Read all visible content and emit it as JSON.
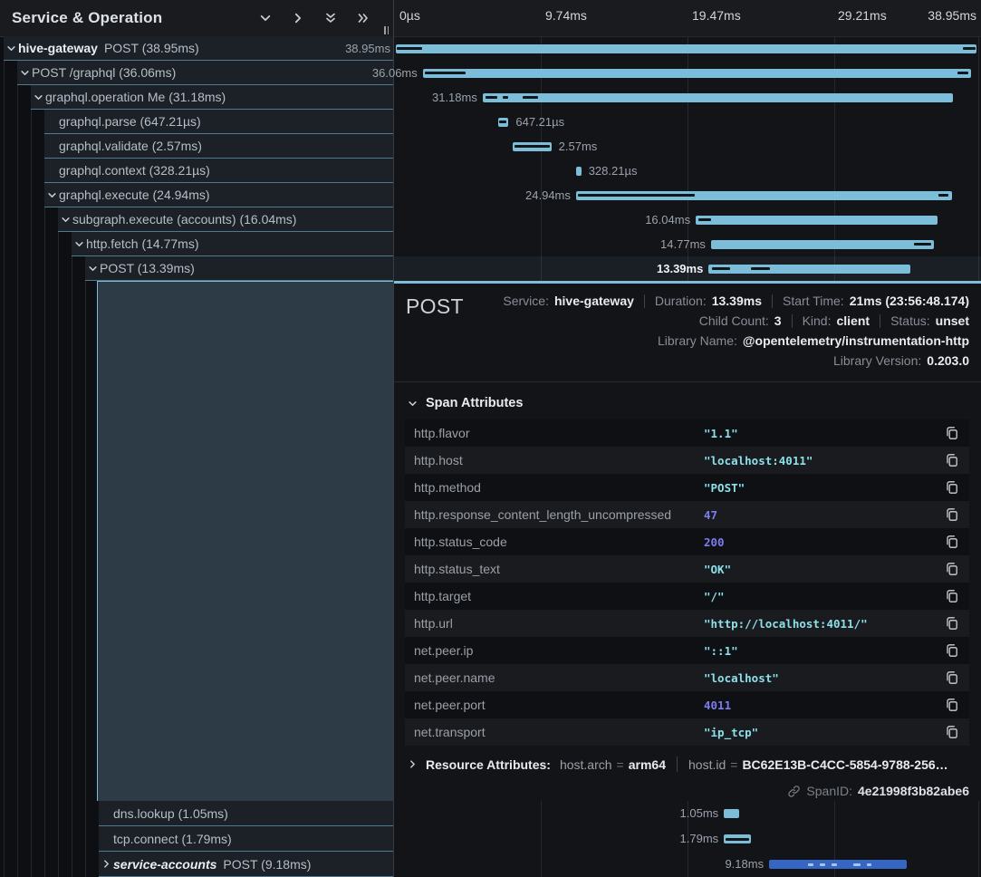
{
  "left_header": {
    "title": "Service & Operation",
    "icons": [
      "chevron-down-icon",
      "chevron-right-icon",
      "double-chevron-down-icon",
      "double-chevron-right-icon"
    ]
  },
  "timeline": {
    "ticks": [
      "0µs",
      "9.74ms",
      "19.47ms",
      "29.21ms",
      "38.95ms"
    ]
  },
  "tree": {
    "rows": [
      {
        "service": "hive-gateway",
        "op": "POST",
        "dur": "38.95ms",
        "depth": 0,
        "chevron": "down"
      },
      {
        "op": "POST /graphql",
        "dur": "36.06ms",
        "depth": 1,
        "chevron": "down"
      },
      {
        "op": "graphql.operation Me",
        "dur": "31.18ms",
        "depth": 2,
        "chevron": "down"
      },
      {
        "op": "graphql.parse",
        "dur": "647.21µs",
        "depth": 3
      },
      {
        "op": "graphql.validate",
        "dur": "2.57ms",
        "depth": 3
      },
      {
        "op": "graphql.context",
        "dur": "328.21µs",
        "depth": 3
      },
      {
        "op": "graphql.execute",
        "dur": "24.94ms",
        "depth": 3,
        "chevron": "down"
      },
      {
        "op": "subgraph.execute (accounts)",
        "dur": "16.04ms",
        "depth": 4,
        "chevron": "down"
      },
      {
        "op": "http.fetch",
        "dur": "14.77ms",
        "depth": 5,
        "chevron": "down"
      },
      {
        "op": "POST",
        "dur": "13.39ms",
        "depth": 6,
        "chevron": "down",
        "selected": true
      }
    ],
    "bottom_rows": [
      {
        "op": "dns.lookup",
        "dur": "1.05ms",
        "depth": 7
      },
      {
        "op": "tcp.connect",
        "dur": "1.79ms",
        "depth": 7
      },
      {
        "service": "service-accounts",
        "italic": true,
        "op": "POST",
        "dur": "9.18ms",
        "depth": 7,
        "chevron": "right"
      }
    ]
  },
  "bars": [
    {
      "label": "38.95ms",
      "l": 0.3,
      "w": 99.0,
      "marks": [
        {
          "l": 0.4,
          "w": 4.4
        },
        {
          "l": 96.9,
          "w": 2.2
        }
      ]
    },
    {
      "label": "36.06ms",
      "l": 4.9,
      "w": 93.4,
      "marks": [
        {
          "l": 5.3,
          "w": 6.9
        },
        {
          "l": 96.0,
          "w": 1.8
        }
      ]
    },
    {
      "label": "31.18ms",
      "l": 15.1,
      "w": 80.1,
      "marks": [
        {
          "l": 15.6,
          "w": 2.0
        },
        {
          "l": 18.5,
          "w": 0.9
        },
        {
          "l": 21.9,
          "w": 2.7
        }
      ]
    },
    {
      "label": "647.21µs",
      "l": 17.7,
      "w": 1.8,
      "side": "right",
      "marks": [
        {
          "l": 17.9,
          "w": 1.3
        }
      ]
    },
    {
      "label": "2.57ms",
      "l": 20.2,
      "w": 6.6,
      "side": "right",
      "marks": [
        {
          "l": 20.6,
          "w": 5.9
        }
      ]
    },
    {
      "label": "328.21µs",
      "l": 31.0,
      "w": 0.9,
      "side": "right",
      "marks": []
    },
    {
      "label": "24.94ms",
      "l": 31.0,
      "w": 64.0,
      "marks": [
        {
          "l": 31.4,
          "w": 19.8
        },
        {
          "l": 92.7,
          "w": 1.7
        }
      ]
    },
    {
      "label": "16.04ms",
      "l": 51.4,
      "w": 41.2,
      "marks": [
        {
          "l": 51.8,
          "w": 2.2
        }
      ]
    },
    {
      "label": "14.77ms",
      "l": 54.0,
      "w": 38.0,
      "marks": [
        {
          "l": 88.6,
          "w": 2.9
        }
      ]
    },
    {
      "label": "13.39ms",
      "l": 53.6,
      "w": 34.4,
      "selected": true,
      "marks": [
        {
          "l": 54.2,
          "w": 3.1
        },
        {
          "l": 60.8,
          "w": 3.2
        }
      ]
    }
  ],
  "bottom_bars": [
    {
      "label": "1.05ms",
      "l": 56.2,
      "w": 2.6,
      "marks": []
    },
    {
      "label": "1.79ms",
      "l": 56.2,
      "w": 4.6,
      "marks": [
        {
          "l": 56.5,
          "w": 4.0
        }
      ]
    },
    {
      "label": "9.18ms",
      "l": 63.9,
      "w": 23.5,
      "alt": true,
      "marks_light": true,
      "marks": [
        {
          "l": 70.5,
          "w": 1.0
        },
        {
          "l": 72.6,
          "w": 0.8
        },
        {
          "l": 74.6,
          "w": 0.8
        },
        {
          "l": 78.2,
          "w": 1.2
        },
        {
          "l": 80.6,
          "w": 0.8
        }
      ]
    }
  ],
  "detail": {
    "title": "POST",
    "meta_lines": [
      [
        {
          "label": "Service:",
          "value": "hive-gateway"
        },
        {
          "label": "Duration:",
          "value": "13.39ms"
        },
        {
          "label": "Start Time:",
          "value": "21ms (23:56:48.174)"
        }
      ],
      [
        {
          "label": "Child Count:",
          "value": "3"
        },
        {
          "label": "Kind:",
          "value": "client"
        },
        {
          "label": "Status:",
          "value": "unset"
        }
      ],
      [
        {
          "label": "Library Name:",
          "value": "@opentelemetry/instrumentation-http"
        }
      ],
      [
        {
          "label": "Library Version:",
          "value": "0.203.0"
        }
      ]
    ],
    "attributes_title": "Span Attributes",
    "attributes": [
      {
        "key": "http.flavor",
        "value": "\"1.1\"",
        "type": "string"
      },
      {
        "key": "http.host",
        "value": "\"localhost:4011\"",
        "type": "string"
      },
      {
        "key": "http.method",
        "value": "\"POST\"",
        "type": "string"
      },
      {
        "key": "http.response_content_length_uncompressed",
        "value": "47",
        "type": "number"
      },
      {
        "key": "http.status_code",
        "value": "200",
        "type": "number"
      },
      {
        "key": "http.status_text",
        "value": "\"OK\"",
        "type": "string"
      },
      {
        "key": "http.target",
        "value": "\"/\"",
        "type": "string"
      },
      {
        "key": "http.url",
        "value": "\"http://localhost:4011/\"",
        "type": "string"
      },
      {
        "key": "net.peer.ip",
        "value": "\"::1\"",
        "type": "string"
      },
      {
        "key": "net.peer.name",
        "value": "\"localhost\"",
        "type": "string"
      },
      {
        "key": "net.peer.port",
        "value": "4011",
        "type": "number"
      },
      {
        "key": "net.transport",
        "value": "\"ip_tcp\"",
        "type": "string"
      }
    ],
    "resource": {
      "title": "Resource Attributes:",
      "items": [
        {
          "key": "host.arch",
          "value": "arm64"
        },
        {
          "key": "host.id",
          "value": "BC62E13B-C4CC-5854-9788-256…"
        }
      ]
    },
    "span_id": {
      "label": "SpanID:",
      "value": "4e21998f3b82abe6"
    }
  },
  "colors": {
    "bar": "#7cbdd9",
    "bar_alt": "#3566c4",
    "accent": "#7cbdd9",
    "string_value": "#8ce0ea",
    "number_value": "#7d7bf0"
  }
}
